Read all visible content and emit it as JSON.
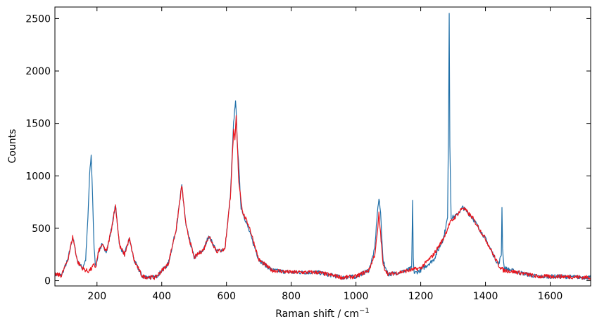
{
  "chart_data": {
    "type": "line",
    "title": "",
    "xlabel": "Raman shift / cm",
    "xlabel_superscript": "−1",
    "ylabel": "Counts",
    "xlim": [
      70,
      1725
    ],
    "ylim": [
      -50,
      2610
    ],
    "xticks": [
      200,
      400,
      600,
      800,
      1000,
      1200,
      1400,
      1600
    ],
    "yticks": [
      0,
      500,
      1000,
      1500,
      2000,
      2500
    ],
    "grid": false,
    "legend": "none",
    "series": [
      {
        "color": "#1f6fa8",
        "role": "reference",
        "x": [
          70,
          90,
          110,
          125,
          140,
          155,
          165,
          172,
          177,
          182,
          186,
          191,
          196,
          205,
          215,
          230,
          245,
          257,
          270,
          285,
          300,
          315,
          340,
          380,
          420,
          445,
          462,
          475,
          500,
          530,
          545,
          570,
          595,
          612,
          622,
          628,
          634,
          645,
          665,
          700,
          740,
          800,
          880,
          960,
          1000,
          1040,
          1058,
          1066,
          1071,
          1076,
          1084,
          1100,
          1150,
          1172,
          1175,
          1177,
          1180,
          1200,
          1240,
          1270,
          1283,
          1286,
          1288,
          1290,
          1294,
          1310,
          1330,
          1360,
          1400,
          1440,
          1449,
          1451,
          1453,
          1458,
          1500,
          1560,
          1640,
          1725
        ],
        "y": [
          60,
          50,
          200,
          420,
          180,
          120,
          200,
          600,
          1000,
          1190,
          850,
          300,
          130,
          280,
          340,
          280,
          500,
          720,
          330,
          250,
          400,
          190,
          40,
          30,
          160,
          500,
          910,
          520,
          220,
          300,
          430,
          280,
          300,
          800,
          1500,
          1730,
          1300,
          700,
          520,
          200,
          100,
          80,
          80,
          30,
          40,
          100,
          300,
          650,
          780,
          650,
          180,
          60,
          90,
          120,
          760,
          200,
          70,
          100,
          200,
          400,
          600,
          1500,
          2560,
          1300,
          600,
          620,
          700,
          600,
          400,
          150,
          250,
          710,
          300,
          120,
          80,
          40,
          40,
          30
        ]
      },
      {
        "color": "#e8141c",
        "role": "measured",
        "x": [
          70,
          90,
          110,
          125,
          140,
          155,
          165,
          172,
          177,
          182,
          186,
          191,
          196,
          205,
          215,
          230,
          245,
          257,
          270,
          285,
          300,
          315,
          340,
          380,
          420,
          445,
          462,
          475,
          500,
          530,
          545,
          570,
          595,
          612,
          622,
          626,
          630,
          638,
          650,
          670,
          700,
          740,
          800,
          880,
          960,
          1000,
          1040,
          1058,
          1066,
          1071,
          1076,
          1084,
          1100,
          1150,
          1200,
          1240,
          1270,
          1290,
          1310,
          1330,
          1360,
          1400,
          1440,
          1455,
          1500,
          1560,
          1640,
          1725
        ],
        "y": [
          60,
          50,
          200,
          420,
          180,
          120,
          100,
          90,
          100,
          110,
          130,
          150,
          130,
          280,
          340,
          280,
          500,
          720,
          330,
          250,
          400,
          190,
          40,
          30,
          160,
          500,
          910,
          520,
          220,
          300,
          430,
          280,
          300,
          800,
          1430,
          1330,
          1570,
          950,
          650,
          520,
          200,
          100,
          80,
          80,
          30,
          40,
          100,
          250,
          450,
          640,
          450,
          140,
          60,
          90,
          120,
          250,
          400,
          550,
          620,
          700,
          600,
          400,
          150,
          100,
          80,
          40,
          40,
          30
        ]
      }
    ]
  }
}
